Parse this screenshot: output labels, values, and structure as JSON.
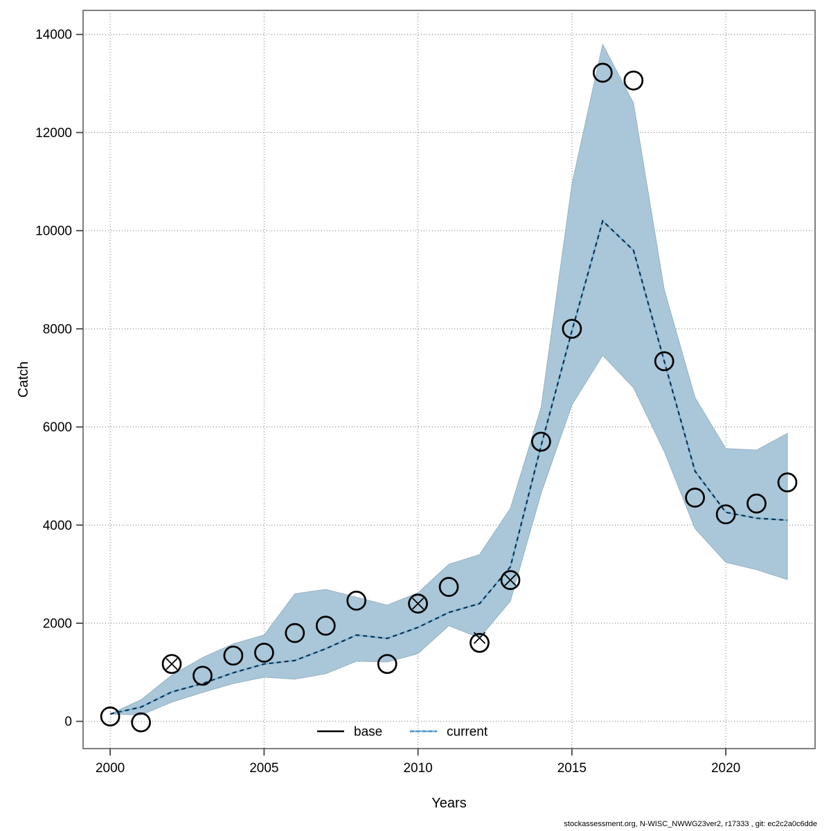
{
  "window": {
    "background": "#ffffff"
  },
  "footer": {
    "text": "stockassessment.org, N-WISC_NWWG23ver2, r17333 , git: ec2c2a0c6dde"
  },
  "chart_data": {
    "type": "line",
    "title": "",
    "xlabel": "Years",
    "ylabel": "Catch",
    "xlim": [
      1999.12,
      2022.9
    ],
    "ylim": [
      -555,
      14490
    ],
    "x_ticks": [
      2000,
      2005,
      2010,
      2015,
      2020
    ],
    "y_ticks": [
      0,
      2000,
      4000,
      6000,
      8000,
      10000,
      12000,
      14000
    ],
    "grid": true,
    "colors": {
      "band_fill": "#a9c7d8",
      "band_edge": "#96b2c2",
      "current_dash": "#122f4e",
      "current_underlay": "#74b4d9",
      "marker": "#000000",
      "grid": "#6e6e6e",
      "frame": "#7d7d7d",
      "text": "#000000"
    },
    "legend": {
      "position": "bottom-center-inside",
      "items": [
        {
          "label": "base",
          "style": "solid",
          "color": "#000000"
        },
        {
          "label": "current",
          "style": "dashed",
          "color": "#4d93bd"
        }
      ]
    },
    "years": [
      2000,
      2001,
      2002,
      2003,
      2004,
      2005,
      2006,
      2007,
      2008,
      2009,
      2010,
      2011,
      2012,
      2013,
      2014,
      2015,
      2016,
      2017,
      2018,
      2019,
      2020,
      2021,
      2022
    ],
    "series": [
      {
        "name": "current",
        "role": "line",
        "style": "dashed",
        "values": [
          150,
          290,
          600,
          770,
          990,
          1170,
          1240,
          1480,
          1760,
          1690,
          1915,
          2220,
          2400,
          3150,
          5620,
          7960,
          10200,
          9600,
          7340,
          5100,
          4260,
          4140,
          4100
        ]
      },
      {
        "name": "current_ci_upper",
        "role": "band-upper",
        "values": [
          150,
          440,
          940,
          1300,
          1580,
          1760,
          2600,
          2690,
          2530,
          2370,
          2620,
          3200,
          3400,
          4340,
          6400,
          10950,
          13800,
          12600,
          8800,
          6600,
          5560,
          5530,
          5870
        ]
      },
      {
        "name": "current_ci_lower",
        "role": "band-lower",
        "values": [
          150,
          130,
          390,
          590,
          770,
          900,
          860,
          970,
          1225,
          1210,
          1380,
          1950,
          1700,
          2450,
          4650,
          6450,
          7460,
          6800,
          5500,
          3930,
          3240,
          3090,
          2890
        ]
      },
      {
        "name": "observed_catch_circles",
        "role": "scatter",
        "marker": "circle",
        "values": [
          100,
          -20,
          1170,
          930,
          1340,
          1400,
          1800,
          1950,
          2460,
          1170,
          2400,
          2740,
          1600,
          2880,
          5700,
          8000,
          13220,
          13060,
          7340,
          4560,
          4220,
          4440,
          4870
        ]
      },
      {
        "name": "observed_catch_crosses",
        "role": "scatter",
        "marker": "x",
        "points": [
          [
            2002,
            1170
          ],
          [
            2010,
            2400
          ],
          [
            2012,
            1700
          ],
          [
            2013,
            2880
          ]
        ]
      }
    ]
  }
}
